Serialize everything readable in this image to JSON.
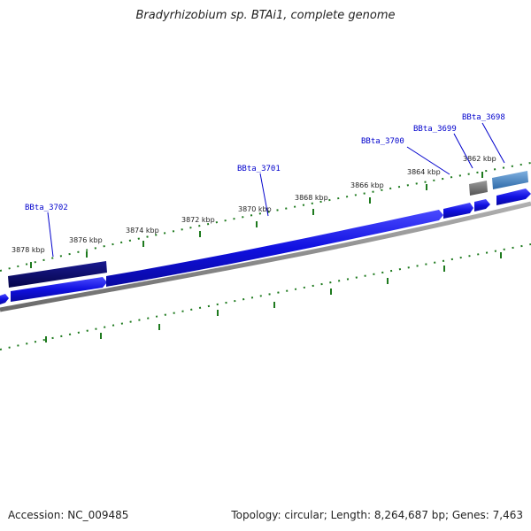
{
  "title": "Bradyrhizobium sp. BTAi1, complete genome",
  "footer": {
    "accession": "Accession: NC_009485",
    "stats": "Topology: circular; Length: 8,264,687 bp; Genes: 7,463"
  },
  "kbp_labels": [
    "3862 kbp",
    "3864 kbp",
    "3866 kbp",
    "3868 kbp",
    "3870 kbp",
    "3872 kbp",
    "3874 kbp",
    "3876 kbp",
    "3878 kbp"
  ],
  "genes": [
    {
      "name": "BBta_3698",
      "color": "#0000cc"
    },
    {
      "name": "BBta_3699",
      "color": "#0000cc"
    },
    {
      "name": "BBta_3700",
      "color": "#0000cc"
    },
    {
      "name": "BBta_3701",
      "color": "#0000cc"
    },
    {
      "name": "BBta_3702",
      "color": "#0000cc"
    }
  ],
  "colors": {
    "cds": "#1010e0",
    "cds_dark": "#0a0a80",
    "gene_label": "#0000cc",
    "ticks": "#1e7a1e",
    "backbone": "#808080",
    "gray_feature": "#707070",
    "steelblue_feature": "#4a86c0"
  }
}
